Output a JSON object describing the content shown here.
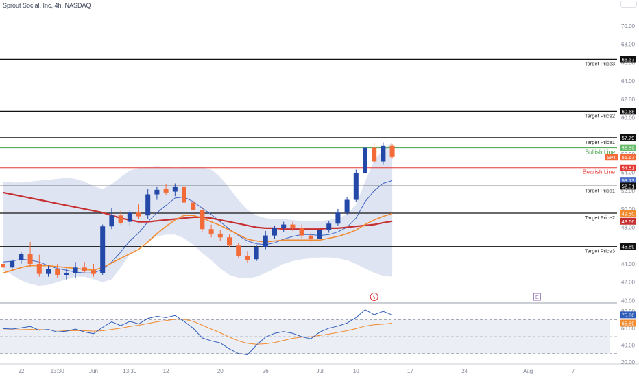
{
  "header": {
    "symbol_line": "Sprout Social, Inc, 4h, NASDAQ"
  },
  "colors": {
    "up": "#2448a8",
    "down": "#f26b38",
    "band_fill": "#dfe4f2",
    "sma_red": "#c73030",
    "ema_orange": "#f28a2e",
    "mid_blue": "#3f63c4",
    "bullish_green": "#43a047",
    "bearish_red": "#e53935",
    "rsi_blue": "#2c5bb8",
    "rsi_orange": "#f28a2e"
  },
  "levels": [
    {
      "price": 66.37,
      "label": "Target Price3",
      "color": "#111111"
    },
    {
      "price": 60.68,
      "label": "Target Price2",
      "color": "#111111"
    },
    {
      "price": 57.79,
      "label": "Target Price1",
      "color": "#111111"
    },
    {
      "price": 56.69,
      "label": "Bullish Line",
      "color": "#43a047"
    },
    {
      "price": 54.51,
      "label": "Bearish Line",
      "color": "#e53935"
    },
    {
      "price": 52.51,
      "label": "Target Price1",
      "color": "#111111"
    },
    {
      "price": 49.54,
      "label": "Target Price2",
      "color": "#111111"
    },
    {
      "price": 45.89,
      "label": "Target Price3",
      "color": "#111111"
    }
  ],
  "price_tags": [
    {
      "text": "66.37",
      "price": 66.37,
      "bg": "#111111",
      "fg": "#ffffff"
    },
    {
      "text": "60.68",
      "price": 60.68,
      "bg": "#111111",
      "fg": "#ffffff"
    },
    {
      "text": "57.79",
      "price": 57.79,
      "bg": "#111111",
      "fg": "#ffffff"
    },
    {
      "text": "56.69",
      "price": 56.69,
      "bg": "#66bb6a",
      "fg": "#ffffff"
    },
    {
      "text": "55.67",
      "price": 55.67,
      "bg": "#f26b38",
      "fg": "#ffffff",
      "symbol": "SPT"
    },
    {
      "text": "54.51",
      "price": 54.51,
      "bg": "#e53935",
      "fg": "#ffffff"
    },
    {
      "text": "53.13",
      "price": 53.13,
      "bg": "#4a6fc9",
      "fg": "#ffffff"
    },
    {
      "text": "52.51",
      "price": 52.51,
      "bg": "#111111",
      "fg": "#ffffff"
    },
    {
      "text": "49.54",
      "price": 49.54,
      "bg": "#111111",
      "fg": "#ffffff"
    },
    {
      "text": "49.50",
      "price": 49.5,
      "bg": "#f28a2e",
      "fg": "#ffffff"
    },
    {
      "text": "48.66",
      "price": 48.66,
      "bg": "#c73030",
      "fg": "#ffffff"
    },
    {
      "text": "45.89",
      "price": 45.89,
      "bg": "#111111",
      "fg": "#ffffff"
    }
  ],
  "rsi_tags": [
    {
      "text": "75.80",
      "value": 75.8,
      "bg": "#2c5bb8",
      "fg": "#ffffff"
    },
    {
      "text": "65.89",
      "value": 65.89,
      "bg": "#f28a2e",
      "fg": "#ffffff"
    }
  ],
  "chart_data": {
    "type": "candlestick",
    "title": "Sprout Social, Inc, 4h, NASDAQ",
    "price_axis": {
      "ylim": [
        39.8,
        71.5
      ],
      "ticks": [
        "40.00",
        "42.00",
        "44.00",
        "46.00",
        "48.00",
        "50.00",
        "52.00",
        "54.00",
        "56.00",
        "58.00",
        "60.00",
        "62.00",
        "64.00",
        "66.00",
        "68.00",
        "70.00"
      ]
    },
    "rsi_axis": {
      "ylim": [
        20,
        85
      ],
      "ticks": [
        "20.00",
        "40.00",
        "60.00",
        "80.00"
      ],
      "dashed_levels": [
        70,
        50,
        30
      ]
    },
    "x_axis_labels": [
      {
        "text": "22",
        "i": 2
      },
      {
        "text": "13:30",
        "i": 6
      },
      {
        "text": "Jun",
        "i": 10
      },
      {
        "text": "13:30",
        "i": 14
      },
      {
        "text": "12",
        "i": 18
      },
      {
        "text": "20",
        "i": 24
      },
      {
        "text": "26",
        "i": 29
      },
      {
        "text": "Jul",
        "i": 35
      },
      {
        "text": "10",
        "i": 39
      },
      {
        "text": "17",
        "i": 45
      },
      {
        "text": "24",
        "i": 51
      },
      {
        "text": "Aug",
        "i": 58
      },
      {
        "text": "7",
        "i": 63
      }
    ],
    "candles": [
      {
        "o": 44.0,
        "h": 44.6,
        "l": 43.4,
        "c": 43.6
      },
      {
        "o": 43.6,
        "h": 44.5,
        "l": 43.3,
        "c": 44.3
      },
      {
        "o": 44.4,
        "h": 45.3,
        "l": 44.0,
        "c": 45.1
      },
      {
        "o": 45.1,
        "h": 46.4,
        "l": 43.7,
        "c": 44.0
      },
      {
        "o": 44.0,
        "h": 45.0,
        "l": 42.6,
        "c": 42.9
      },
      {
        "o": 42.9,
        "h": 43.8,
        "l": 42.6,
        "c": 43.4
      },
      {
        "o": 43.4,
        "h": 44.0,
        "l": 42.5,
        "c": 42.8
      },
      {
        "o": 42.8,
        "h": 43.5,
        "l": 42.3,
        "c": 43.0
      },
      {
        "o": 43.0,
        "h": 44.2,
        "l": 42.4,
        "c": 43.6
      },
      {
        "o": 43.6,
        "h": 44.2,
        "l": 43.0,
        "c": 43.2
      },
      {
        "o": 43.3,
        "h": 44.0,
        "l": 42.6,
        "c": 42.9
      },
      {
        "o": 43.0,
        "h": 48.3,
        "l": 42.8,
        "c": 48.1
      },
      {
        "o": 48.1,
        "h": 50.1,
        "l": 47.8,
        "c": 49.3
      },
      {
        "o": 49.3,
        "h": 49.8,
        "l": 48.3,
        "c": 48.5
      },
      {
        "o": 48.6,
        "h": 49.9,
        "l": 48.2,
        "c": 49.6
      },
      {
        "o": 49.6,
        "h": 50.5,
        "l": 48.9,
        "c": 49.2
      },
      {
        "o": 49.3,
        "h": 52.2,
        "l": 48.9,
        "c": 51.6
      },
      {
        "o": 51.6,
        "h": 52.4,
        "l": 51.0,
        "c": 52.1
      },
      {
        "o": 52.2,
        "h": 52.7,
        "l": 51.5,
        "c": 51.8
      },
      {
        "o": 51.9,
        "h": 52.8,
        "l": 51.4,
        "c": 52.4
      },
      {
        "o": 52.4,
        "h": 52.6,
        "l": 50.5,
        "c": 50.7
      },
      {
        "o": 50.7,
        "h": 51.0,
        "l": 49.8,
        "c": 49.9
      },
      {
        "o": 49.9,
        "h": 50.2,
        "l": 47.5,
        "c": 47.8
      },
      {
        "o": 47.8,
        "h": 48.3,
        "l": 46.9,
        "c": 47.3
      },
      {
        "o": 47.3,
        "h": 47.7,
        "l": 46.5,
        "c": 46.9
      },
      {
        "o": 46.9,
        "h": 47.2,
        "l": 45.8,
        "c": 46.0
      },
      {
        "o": 46.0,
        "h": 46.3,
        "l": 44.7,
        "c": 44.9
      },
      {
        "o": 44.9,
        "h": 45.4,
        "l": 44.1,
        "c": 44.4
      },
      {
        "o": 44.5,
        "h": 46.1,
        "l": 44.3,
        "c": 45.8
      },
      {
        "o": 45.8,
        "h": 47.6,
        "l": 45.6,
        "c": 47.1
      },
      {
        "o": 47.1,
        "h": 48.2,
        "l": 46.7,
        "c": 47.9
      },
      {
        "o": 47.9,
        "h": 48.6,
        "l": 47.5,
        "c": 48.3
      },
      {
        "o": 48.3,
        "h": 48.6,
        "l": 47.6,
        "c": 47.9
      },
      {
        "o": 47.9,
        "h": 48.3,
        "l": 46.8,
        "c": 47.1
      },
      {
        "o": 47.1,
        "h": 47.5,
        "l": 46.3,
        "c": 46.7
      },
      {
        "o": 46.7,
        "h": 48.0,
        "l": 46.5,
        "c": 47.7
      },
      {
        "o": 47.7,
        "h": 48.7,
        "l": 47.4,
        "c": 48.4
      },
      {
        "o": 48.4,
        "h": 50.0,
        "l": 48.2,
        "c": 49.6
      },
      {
        "o": 49.6,
        "h": 51.3,
        "l": 49.4,
        "c": 51.0
      },
      {
        "o": 51.0,
        "h": 54.3,
        "l": 50.8,
        "c": 53.9
      },
      {
        "o": 53.9,
        "h": 57.4,
        "l": 53.6,
        "c": 56.7
      },
      {
        "o": 56.7,
        "h": 57.2,
        "l": 55.0,
        "c": 55.2
      },
      {
        "o": 55.2,
        "h": 57.3,
        "l": 54.9,
        "c": 56.9
      },
      {
        "o": 56.9,
        "h": 57.1,
        "l": 55.5,
        "c": 55.7
      }
    ],
    "bollinger_upper": [
      53.0,
      52.9,
      52.9,
      53.0,
      53.1,
      53.2,
      53.3,
      53.4,
      53.3,
      53.0,
      52.5,
      52.2,
      52.7,
      53.5,
      54.2,
      54.5,
      54.6,
      54.7,
      54.6,
      54.5,
      54.6,
      54.6,
      54.6,
      54.3,
      53.5,
      52.3,
      51.0,
      49.9,
      49.3,
      49.0,
      48.9,
      48.9,
      48.8,
      48.7,
      48.7,
      48.7,
      48.8,
      49.0,
      49.4,
      50.5,
      53.0,
      55.3,
      56.5,
      57.3
    ],
    "bollinger_lower": [
      43.3,
      42.8,
      42.2,
      41.8,
      41.6,
      41.7,
      42.0,
      42.3,
      42.6,
      42.6,
      42.3,
      42.0,
      42.3,
      43.6,
      45.0,
      45.8,
      46.5,
      47.0,
      47.2,
      47.2,
      46.8,
      46.1,
      45.2,
      44.4,
      43.5,
      42.8,
      42.5,
      42.4,
      42.6,
      43.0,
      43.5,
      44.0,
      44.3,
      44.5,
      44.6,
      44.7,
      44.7,
      44.6,
      44.4,
      44.0,
      43.5,
      43.0,
      42.7,
      42.6
    ],
    "bollinger_mid": [
      44.2,
      44.3,
      44.5,
      44.4,
      44.2,
      43.8,
      43.5,
      43.3,
      43.1,
      43.0,
      43.0,
      43.4,
      44.2,
      45.3,
      46.5,
      47.4,
      48.6,
      49.6,
      50.4,
      51.2,
      51.3,
      50.8,
      50.1,
      49.4,
      48.6,
      47.8,
      47.1,
      46.5,
      46.2,
      46.1,
      46.3,
      46.7,
      47.0,
      47.2,
      47.2,
      47.1,
      47.2,
      47.5,
      48.0,
      49.0,
      50.8,
      52.0,
      52.8,
      53.1
    ],
    "sma_red": [
      51.8,
      51.6,
      51.4,
      51.2,
      51.0,
      50.8,
      50.6,
      50.4,
      50.2,
      50.0,
      49.8,
      49.6,
      49.3,
      49.0,
      48.8,
      48.6,
      48.6,
      48.7,
      48.8,
      48.9,
      49.0,
      49.1,
      49.1,
      49.0,
      48.8,
      48.6,
      48.4,
      48.2,
      48.0,
      47.9,
      47.9,
      47.8,
      47.8,
      47.8,
      47.8,
      47.8,
      47.9,
      47.9,
      48.0,
      48.1,
      48.2,
      48.3,
      48.5,
      48.66
    ],
    "ema_orange": [
      43.0,
      43.3,
      43.6,
      43.8,
      43.8,
      43.8,
      43.7,
      43.6,
      43.5,
      43.4,
      43.3,
      43.6,
      44.1,
      44.6,
      45.1,
      45.6,
      46.4,
      47.3,
      48.1,
      48.8,
      49.3,
      49.3,
      49.0,
      48.6,
      48.2,
      47.7,
      47.2,
      46.7,
      46.5,
      46.4,
      46.5,
      46.6,
      46.6,
      46.6,
      46.6,
      46.6,
      46.8,
      47.0,
      47.3,
      47.7,
      48.3,
      48.8,
      49.2,
      49.5
    ],
    "rsi": [
      59.5,
      59.0,
      60.5,
      62.0,
      57.5,
      58.5,
      55.5,
      56.5,
      59.0,
      55.5,
      53.5,
      61.0,
      67.5,
      63.0,
      68.0,
      65.0,
      71.5,
      74.0,
      72.5,
      75.0,
      68.0,
      60.0,
      48.5,
      45.0,
      42.5,
      35.5,
      30.0,
      28.5,
      40.0,
      49.5,
      54.0,
      56.0,
      54.0,
      50.0,
      47.5,
      55.5,
      60.0,
      62.5,
      66.0,
      72.5,
      82.0,
      76.0,
      80.0,
      75.8
    ],
    "rsi_ma": [
      58.0,
      58.0,
      58.2,
      58.5,
      58.3,
      58.0,
      57.5,
      57.0,
      57.2,
      57.0,
      56.5,
      57.0,
      58.5,
      60.0,
      62.0,
      63.5,
      65.5,
      67.5,
      69.0,
      70.5,
      70.5,
      68.0,
      63.5,
      59.0,
      54.5,
      49.5,
      45.0,
      42.0,
      41.0,
      41.5,
      43.0,
      45.5,
      48.0,
      49.5,
      50.0,
      51.5,
      53.0,
      55.0,
      57.0,
      59.5,
      62.5,
      64.0,
      64.8,
      65.89
    ]
  },
  "markers": [
    {
      "symbol": "ϟ",
      "i": 41,
      "style": "circle",
      "color": "#e53935"
    },
    {
      "symbol": "E",
      "i": 59,
      "style": "square",
      "color": "#8e6cb8"
    }
  ]
}
